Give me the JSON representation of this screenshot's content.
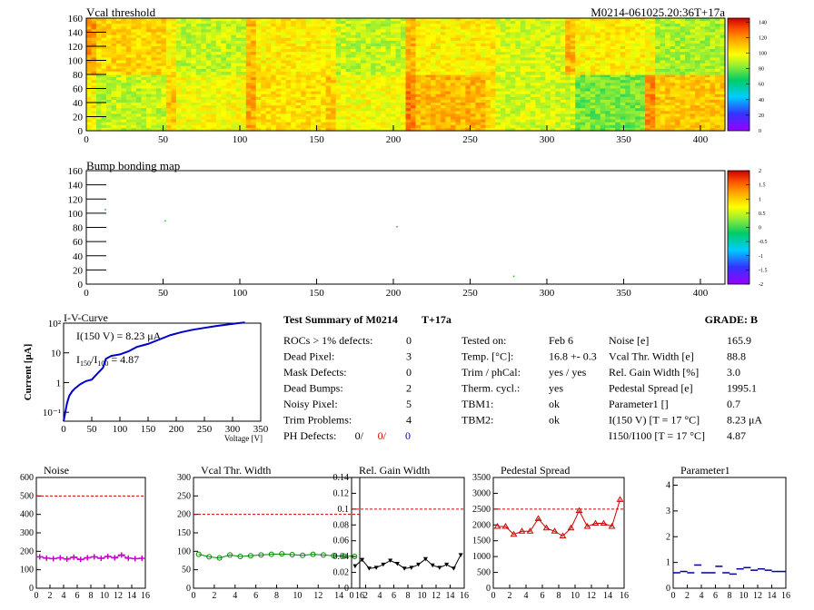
{
  "header_right": "M0214-061025.20:36T+17a",
  "maps": [
    {
      "title": "Vcal threshold",
      "x_ticks": [
        "0",
        "50",
        "100",
        "150",
        "200",
        "250",
        "300",
        "350",
        "400"
      ],
      "y_ticks": [
        "0",
        "20",
        "40",
        "60",
        "80",
        "100",
        "120",
        "140",
        "160"
      ],
      "color_ticks": [
        "0",
        "20",
        "40",
        "60",
        "80",
        "100",
        "120",
        "140"
      ],
      "xlim": [
        0,
        416
      ],
      "ylim": [
        0,
        160
      ],
      "zlim": [
        0,
        145
      ]
    },
    {
      "title": "Bump bonding map",
      "x_ticks": [
        "0",
        "50",
        "100",
        "150",
        "200",
        "250",
        "300",
        "350",
        "400"
      ],
      "y_ticks": [
        "0",
        "20",
        "40",
        "60",
        "80",
        "100",
        "120",
        "140",
        "160"
      ],
      "color_ticks": [
        "-2",
        "-1.5",
        "-1",
        "-0.5",
        "0",
        "0.5",
        "1",
        "1.5",
        "2"
      ],
      "xlim": [
        0,
        416
      ],
      "ylim": [
        0,
        160
      ],
      "zlim": [
        -2,
        2
      ],
      "points": [
        [
          12,
          106
        ],
        [
          51,
          90
        ],
        [
          202,
          82
        ],
        [
          278,
          12
        ]
      ]
    }
  ],
  "iv": {
    "title": "I-V-Curve",
    "ylabel": "Current [μA]",
    "xlabel": "Voltage [V]",
    "x_ticks": [
      "0",
      "50",
      "100",
      "150",
      "200",
      "250",
      "300",
      "350"
    ],
    "y_ticks": [
      "10⁻¹",
      "1",
      "10",
      "10²"
    ],
    "annot1": "I(150 V) = 8.23 μA",
    "annot2a": "I",
    "annot2b": "150",
    "annot2c": "/I",
    "annot2d": "100",
    "annot2e": " =  4.87",
    "xlim": [
      0,
      350
    ],
    "ylim_log": [
      -1.3,
      2
    ]
  },
  "summary": {
    "title": "Test Summary of M0214",
    "temp_tag": "T+17a",
    "grade": "GRADE:  B",
    "left_labels": [
      "ROCs > 1% defects:",
      "Dead Pixel:",
      "Mask Defects:",
      "Dead Bumps:",
      "Noisy Pixel:",
      "Trim Problems:",
      "PH Defects:"
    ],
    "left_values": [
      "0",
      "3",
      "0",
      "2",
      "5",
      "4"
    ],
    "ph_values": [
      "0/",
      "0/",
      "0"
    ],
    "mid_labels": [
      "Tested on:",
      "Temp. [°C]:",
      "Trim / phCal:",
      "Therm. cycl.:",
      "TBM1:",
      "TBM2:"
    ],
    "mid_values": [
      "Feb 6",
      "16.8 +- 0.3",
      "yes / yes",
      "yes",
      "ok",
      "ok"
    ],
    "right_labels": [
      "Noise [e]",
      "Vcal Thr. Width [e]",
      "Rel. Gain Width [%]",
      "Pedestal Spread [e]",
      "Parameter1 []",
      "I(150 V) [T = 17 °C]",
      "I150/I100  [T = 17 °C]"
    ],
    "right_values": [
      "165.9",
      "88.8",
      "3.0",
      "1995.1",
      "0.7",
      "8.23 μA",
      "4.87"
    ]
  },
  "chart_data": [
    {
      "type": "line",
      "title": "Noise",
      "color": "#cc00cc",
      "x": [
        0,
        1,
        2,
        3,
        4,
        5,
        6,
        7,
        8,
        9,
        10,
        11,
        12,
        13,
        14,
        15
      ],
      "values": [
        170,
        163,
        160,
        165,
        158,
        168,
        156,
        165,
        170,
        162,
        172,
        165,
        180,
        163,
        160,
        162
      ],
      "ylim": [
        0,
        600
      ],
      "y_ticks": [
        0,
        100,
        200,
        300,
        400,
        500,
        600
      ],
      "threshold": 500,
      "marker": "cross"
    },
    {
      "type": "line",
      "title": "Vcal Thr. Width",
      "color": "#008800",
      "x": [
        0,
        1,
        2,
        3,
        4,
        5,
        6,
        7,
        8,
        9,
        10,
        11,
        12,
        13,
        14,
        15
      ],
      "values": [
        92,
        85,
        82,
        90,
        86,
        88,
        90,
        92,
        93,
        91,
        89,
        92,
        90,
        88,
        87,
        86
      ],
      "ylim": [
        0,
        300
      ],
      "y_ticks": [
        0,
        50,
        100,
        150,
        200,
        250,
        300
      ],
      "threshold": 200,
      "marker": "circle"
    },
    {
      "type": "line",
      "title": "Rel. Gain Width",
      "color": "#000000",
      "x": [
        0,
        1,
        2,
        3,
        4,
        5,
        6,
        7,
        8,
        9,
        10,
        11,
        12,
        13,
        14,
        15
      ],
      "values": [
        0.028,
        0.036,
        0.025,
        0.026,
        0.03,
        0.035,
        0.031,
        0.025,
        0.026,
        0.03,
        0.037,
        0.029,
        0.026,
        0.03,
        0.025,
        0.042
      ],
      "ylim": [
        0,
        0.14
      ],
      "y_ticks": [
        0,
        0.02,
        0.04,
        0.06,
        0.08,
        0.1,
        0.12,
        0.14
      ],
      "threshold": 0.1,
      "marker": "triangle"
    },
    {
      "type": "line",
      "title": "Pedestal Spread",
      "color": "#cc0000",
      "x": [
        0,
        1,
        2,
        3,
        4,
        5,
        6,
        7,
        8,
        9,
        10,
        11,
        12,
        13,
        14,
        15
      ],
      "values": [
        1950,
        1950,
        1700,
        1800,
        1800,
        2200,
        1900,
        1800,
        1650,
        1900,
        2450,
        1950,
        2050,
        2050,
        1950,
        2800
      ],
      "ylim": [
        0,
        3500
      ],
      "y_ticks": [
        0,
        500,
        1000,
        1500,
        2000,
        2500,
        3000,
        3500
      ],
      "threshold": 2500,
      "marker": "triangle-open"
    },
    {
      "type": "scatter",
      "title": "Parameter1",
      "color": "#000099",
      "x": [
        0,
        1,
        2,
        3,
        4,
        5,
        6,
        7,
        8,
        9,
        10,
        11,
        12,
        13,
        14,
        15
      ],
      "values": [
        0.6,
        0.65,
        0.6,
        0.9,
        0.6,
        0.6,
        0.85,
        0.6,
        0.55,
        0.75,
        0.8,
        0.7,
        0.75,
        0.7,
        0.65,
        0.65
      ],
      "ylim": [
        0,
        4.3
      ],
      "y_ticks": [
        0,
        1,
        2,
        3,
        4
      ],
      "threshold": null,
      "marker": "hbar"
    }
  ]
}
